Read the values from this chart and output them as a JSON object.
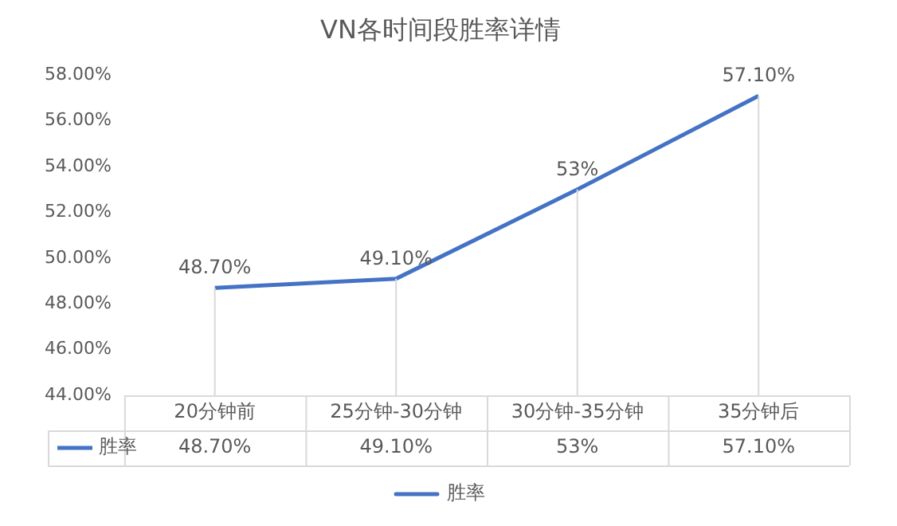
{
  "chart_data": {
    "type": "line",
    "title": "VN各时间段胜率详情",
    "categories": [
      "20分钟前",
      "25分钟-30分钟",
      "30分钟-35分钟",
      "35分钟后"
    ],
    "series": [
      {
        "name": "胜率",
        "color": "#4472c4",
        "values": [
          48.7,
          49.1,
          53,
          57.1
        ],
        "value_labels": [
          "48.70%",
          "49.10%",
          "53%",
          "57.10%"
        ]
      }
    ],
    "ylim": [
      44,
      58
    ],
    "yticks": [
      {
        "value": 44,
        "label": "44.00%"
      },
      {
        "value": 46,
        "label": "46.00%"
      },
      {
        "value": 48,
        "label": "48.00%"
      },
      {
        "value": 50,
        "label": "50.00%"
      },
      {
        "value": 52,
        "label": "52.00%"
      },
      {
        "value": 54,
        "label": "54.00%"
      },
      {
        "value": 56,
        "label": "56.00%"
      },
      {
        "value": 58,
        "label": "58.00%"
      }
    ],
    "grid": "x",
    "legend": "bottom",
    "marker": "none",
    "line_style": "solid"
  }
}
